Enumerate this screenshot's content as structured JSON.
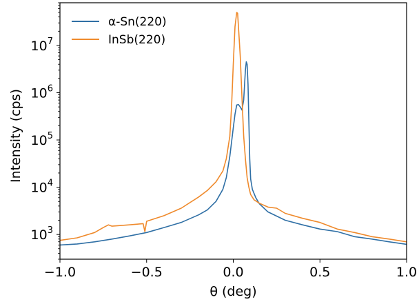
{
  "chart_data": {
    "type": "line",
    "xlabel": "θ (deg)",
    "ylabel": "Intensity (cps)",
    "xlim": [
      -1.0,
      1.0
    ],
    "ylim": [
      300,
      80000000
    ],
    "yscale": "log",
    "grid": false,
    "legend_position": "top-left",
    "x_ticks": [
      {
        "value": -1.0,
        "label": "−1.0"
      },
      {
        "value": -0.5,
        "label": "−0.5"
      },
      {
        "value": 0.0,
        "label": "0.0"
      },
      {
        "value": 0.5,
        "label": "0.5"
      },
      {
        "value": 1.0,
        "label": "1.0"
      }
    ],
    "y_ticks": [
      {
        "value": 1000,
        "base": "10",
        "exp": "3"
      },
      {
        "value": 10000,
        "base": "10",
        "exp": "4"
      },
      {
        "value": 100000,
        "base": "10",
        "exp": "5"
      },
      {
        "value": 1000000,
        "base": "10",
        "exp": "6"
      },
      {
        "value": 10000000,
        "base": "10",
        "exp": "7"
      }
    ],
    "series": [
      {
        "name": "α-Sn(220)",
        "color": "#2f6fa5",
        "x": [
          -1.0,
          -0.9,
          -0.8,
          -0.7,
          -0.6,
          -0.5,
          -0.4,
          -0.3,
          -0.2,
          -0.15,
          -0.1,
          -0.06,
          -0.04,
          -0.02,
          0.0,
          0.01,
          0.02,
          0.03,
          0.04,
          0.05,
          0.06,
          0.07,
          0.075,
          0.08,
          0.085,
          0.09,
          0.095,
          0.1,
          0.11,
          0.13,
          0.15,
          0.2,
          0.3,
          0.4,
          0.5,
          0.6,
          0.7,
          0.8,
          0.9,
          1.0
        ],
        "y": [
          600,
          630,
          700,
          800,
          930,
          1100,
          1400,
          1800,
          2600,
          3300,
          5000,
          9000,
          16000,
          45000,
          180000,
          350000,
          550000,
          560000,
          500000,
          430000,
          700000,
          3000000,
          4500000,
          4000000,
          1500000,
          250000,
          40000,
          15000,
          9000,
          6000,
          4500,
          3000,
          2000,
          1600,
          1300,
          1150,
          900,
          800,
          700,
          620
        ]
      },
      {
        "name": "InSb(220)",
        "color": "#ef8a2c",
        "x": [
          -1.0,
          -0.9,
          -0.8,
          -0.75,
          -0.72,
          -0.7,
          -0.6,
          -0.52,
          -0.51,
          -0.5,
          -0.4,
          -0.3,
          -0.2,
          -0.15,
          -0.1,
          -0.06,
          -0.04,
          -0.02,
          -0.01,
          0.0,
          0.01,
          0.02,
          0.025,
          0.03,
          0.04,
          0.05,
          0.06,
          0.07,
          0.08,
          0.09,
          0.1,
          0.12,
          0.15,
          0.2,
          0.25,
          0.3,
          0.4,
          0.5,
          0.6,
          0.7,
          0.8,
          0.9,
          1.0
        ],
        "y": [
          750,
          850,
          1100,
          1400,
          1600,
          1500,
          1600,
          1700,
          1150,
          1900,
          2500,
          3600,
          6200,
          8500,
          13000,
          22000,
          40000,
          120000,
          500000,
          4000000,
          25000000,
          50000000,
          48000000,
          25000000,
          6000000,
          800000,
          120000,
          40000,
          16000,
          10000,
          7000,
          5400,
          4600,
          3800,
          3600,
          2800,
          2200,
          1800,
          1300,
          1100,
          900,
          800,
          700
        ]
      }
    ]
  }
}
